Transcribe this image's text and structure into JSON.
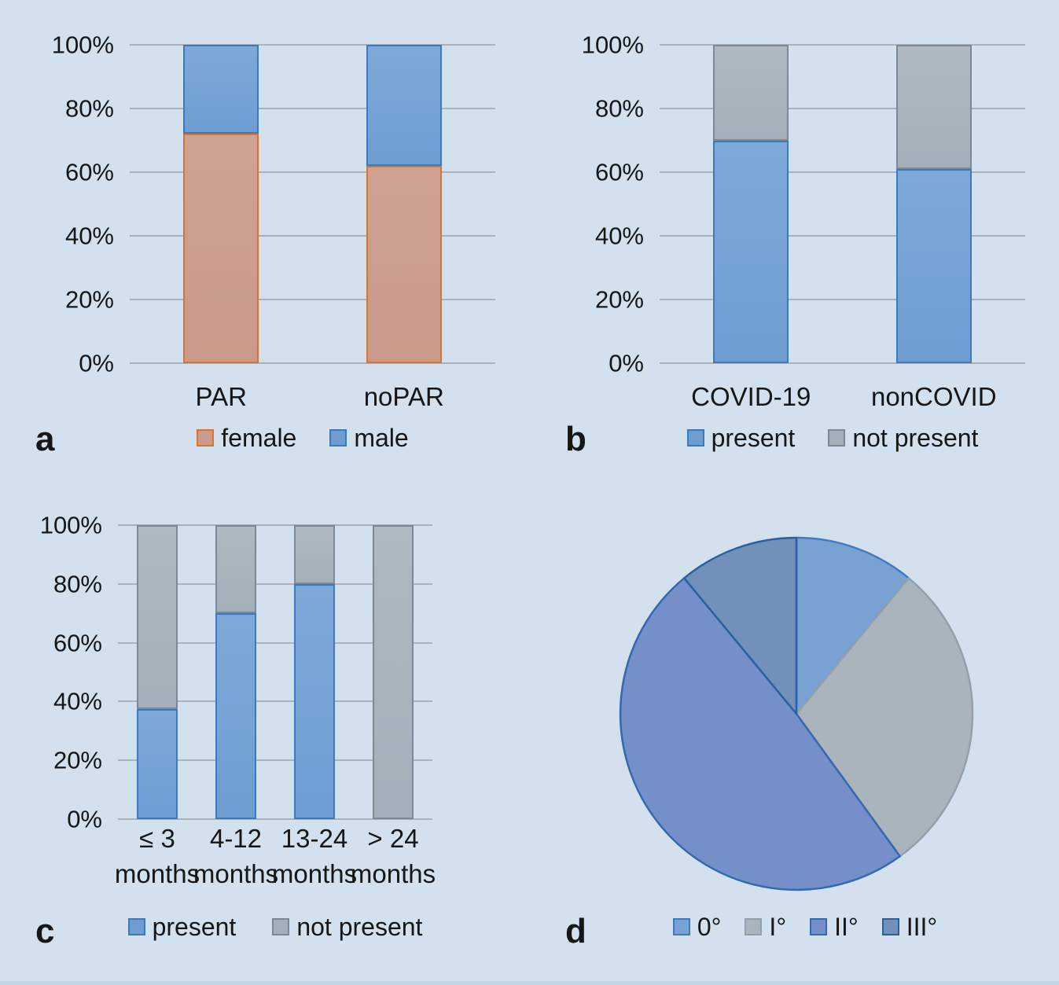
{
  "figure": {
    "background": "#d3e1ee",
    "text_color": "#161616",
    "gridline_color": "#a9b2ba"
  },
  "chart_data": [
    {
      "id": "a",
      "panel_letter": "a",
      "type": "bar",
      "stacked": true,
      "categories": [
        "PAR",
        "noPAR"
      ],
      "series": [
        {
          "name": "female",
          "values": [
            72,
            62
          ],
          "fill": "#c9998a",
          "fill_top": "#cfa294",
          "border": "#d9742f"
        },
        {
          "name": "male",
          "values": [
            28,
            38
          ],
          "fill": "#6f9dd2",
          "fill_top": "#7ea8d8",
          "border": "#3a7abf"
        }
      ],
      "ylim": [
        0,
        100
      ],
      "yticks": [
        "100%",
        "80%",
        "60%",
        "40%",
        "20%",
        "0%"
      ],
      "grid": true,
      "legend_position": "bottom"
    },
    {
      "id": "b",
      "panel_letter": "b",
      "type": "bar",
      "stacked": true,
      "categories": [
        "COVID-19",
        "nonCOVID"
      ],
      "series": [
        {
          "name": "present",
          "values": [
            70,
            61
          ],
          "fill": "#6f9dd2",
          "fill_top": "#7ea8d8",
          "border": "#3a7abf"
        },
        {
          "name": "not present",
          "values": [
            30,
            39
          ],
          "fill": "#a4b0b9",
          "fill_top": "#aeb9c1",
          "border": "#7c8894"
        }
      ],
      "ylim": [
        0,
        100
      ],
      "yticks": [
        "100%",
        "80%",
        "60%",
        "40%",
        "20%",
        "0%"
      ],
      "grid": true,
      "legend_position": "bottom"
    },
    {
      "id": "c",
      "panel_letter": "c",
      "type": "bar",
      "stacked": true,
      "categories": [
        {
          "line1": "≤ 3",
          "line2": "months"
        },
        {
          "line1": "4-12",
          "line2": "months"
        },
        {
          "line1": "13-24",
          "line2": "months"
        },
        {
          "line1": "> 24",
          "line2": "months"
        }
      ],
      "series": [
        {
          "name": "present",
          "values": [
            37.5,
            70,
            80,
            0
          ],
          "fill": "#6f9dd2",
          "fill_top": "#7ea8d8",
          "border": "#3a7abf"
        },
        {
          "name": "not present",
          "values": [
            62.5,
            30,
            20,
            100
          ],
          "fill": "#a4b0b9",
          "fill_top": "#aeb9c1",
          "border": "#7c8894"
        }
      ],
      "ylim": [
        0,
        100
      ],
      "yticks": [
        "100%",
        "80%",
        "60%",
        "40%",
        "20%",
        "0%"
      ],
      "grid": true,
      "legend_position": "bottom"
    },
    {
      "id": "d",
      "panel_letter": "d",
      "type": "pie",
      "labels": [
        "0°",
        "I°",
        "II°",
        "III°"
      ],
      "values": [
        11,
        29,
        49,
        11
      ],
      "colors": [
        {
          "fill": "#79a2d3",
          "border": "#3e7cc0"
        },
        {
          "fill": "#a9b4bd",
          "border": "#93a0aa"
        },
        {
          "fill": "#7590c8",
          "border": "#3568b0"
        },
        {
          "fill": "#7190ba",
          "border": "#2c5f9f"
        }
      ],
      "start_angle_deg": 0,
      "direction": "clockwise",
      "legend_position": "bottom"
    }
  ]
}
